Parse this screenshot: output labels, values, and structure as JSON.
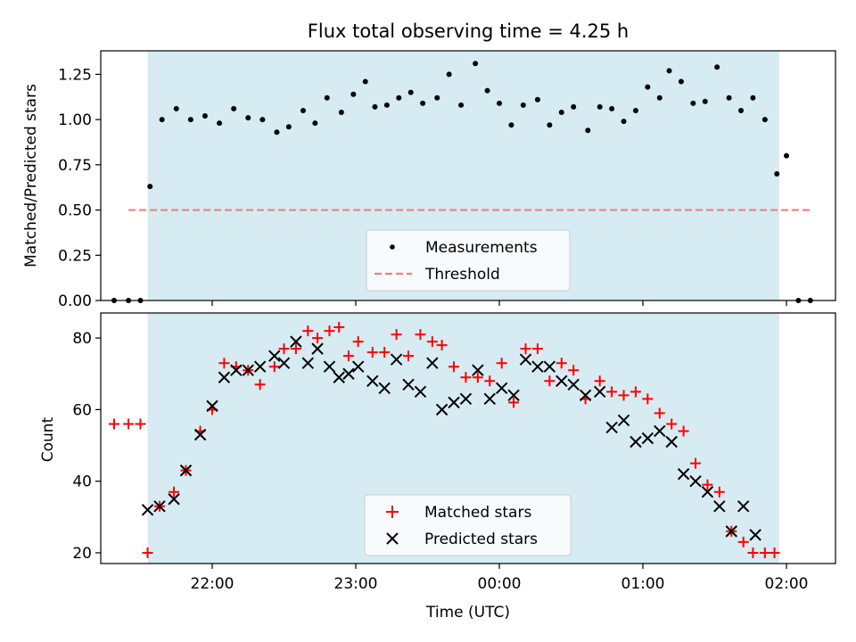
{
  "chart_data": [
    {
      "type": "scatter",
      "title": "Flux total observing time = 4.25 h",
      "xlabel": "",
      "ylabel": "Matched/Predicted stars",
      "ylim": [
        0,
        1.38
      ],
      "yticks": [
        "0.00",
        "0.25",
        "0.50",
        "0.75",
        "1.00",
        "1.25"
      ],
      "grid": false,
      "legend_position": "lower center",
      "shaded_interval": [
        "21:33",
        "01:57"
      ],
      "series": [
        {
          "name": "Measurements",
          "marker": "dot",
          "color": "#000000",
          "points": [
            [
              "21:19",
              0.0
            ],
            [
              "21:25",
              0.0
            ],
            [
              "21:30",
              0.0
            ],
            [
              "21:34",
              0.63
            ],
            [
              "21:39",
              1.0
            ],
            [
              "21:45",
              1.06
            ],
            [
              "21:51",
              1.0
            ],
            [
              "21:57",
              1.02
            ],
            [
              "22:03",
              0.98
            ],
            [
              "22:09",
              1.06
            ],
            [
              "22:15",
              1.01
            ],
            [
              "22:21",
              1.0
            ],
            [
              "22:27",
              0.93
            ],
            [
              "22:32",
              0.96
            ],
            [
              "22:38",
              1.05
            ],
            [
              "22:43",
              0.98
            ],
            [
              "22:48",
              1.12
            ],
            [
              "22:54",
              1.04
            ],
            [
              "22:59",
              1.14
            ],
            [
              "23:04",
              1.21
            ],
            [
              "23:08",
              1.07
            ],
            [
              "23:13",
              1.08
            ],
            [
              "23:18",
              1.12
            ],
            [
              "23:23",
              1.15
            ],
            [
              "23:28",
              1.09
            ],
            [
              "23:34",
              1.12
            ],
            [
              "23:39",
              1.25
            ],
            [
              "23:44",
              1.08
            ],
            [
              "23:50",
              1.31
            ],
            [
              "23:55",
              1.16
            ],
            [
              "00:00",
              1.09
            ],
            [
              "00:05",
              0.97
            ],
            [
              "00:10",
              1.08
            ],
            [
              "00:16",
              1.11
            ],
            [
              "00:21",
              0.97
            ],
            [
              "00:26",
              1.04
            ],
            [
              "00:31",
              1.07
            ],
            [
              "00:37",
              0.94
            ],
            [
              "00:42",
              1.07
            ],
            [
              "00:47",
              1.06
            ],
            [
              "00:52",
              0.99
            ],
            [
              "00:57",
              1.05
            ],
            [
              "01:02",
              1.18
            ],
            [
              "01:07",
              1.12
            ],
            [
              "01:11",
              1.27
            ],
            [
              "01:16",
              1.21
            ],
            [
              "01:21",
              1.09
            ],
            [
              "01:26",
              1.1
            ],
            [
              "01:31",
              1.29
            ],
            [
              "01:36",
              1.12
            ],
            [
              "01:41",
              1.05
            ],
            [
              "01:46",
              1.12
            ],
            [
              "01:51",
              1.0
            ],
            [
              "01:56",
              0.7
            ],
            [
              "02:00",
              0.8
            ],
            [
              "02:05",
              0.0
            ],
            [
              "02:10",
              0.0
            ]
          ]
        },
        {
          "name": "Threshold",
          "style": "dashed",
          "color": "#f08080",
          "points": [
            [
              "21:25",
              0.5
            ],
            [
              "02:10",
              0.5
            ]
          ]
        }
      ]
    },
    {
      "type": "scatter",
      "title": "",
      "xlabel": "Time (UTC)",
      "ylabel": "Count",
      "ylim": [
        17,
        87
      ],
      "yticks": [
        "20",
        "40",
        "60",
        "80"
      ],
      "xticks": [
        "22:00",
        "23:00",
        "00:00",
        "01:00",
        "02:00"
      ],
      "grid": false,
      "legend_position": "lower center",
      "shaded_interval": [
        "21:33",
        "01:57"
      ],
      "series": [
        {
          "name": "Matched stars",
          "marker": "plus",
          "color": "#ff0000",
          "points": [
            [
              "21:19",
              56
            ],
            [
              "21:25",
              56
            ],
            [
              "21:30",
              56
            ],
            [
              "21:33",
              20
            ],
            [
              "21:38",
              33
            ],
            [
              "21:44",
              37
            ],
            [
              "21:49",
              43
            ],
            [
              "21:55",
              54
            ],
            [
              "22:00",
              60
            ],
            [
              "22:05",
              73
            ],
            [
              "22:10",
              72
            ],
            [
              "22:15",
              71
            ],
            [
              "22:20",
              67
            ],
            [
              "22:26",
              72
            ],
            [
              "22:30",
              77
            ],
            [
              "22:35",
              77
            ],
            [
              "22:40",
              82
            ],
            [
              "22:44",
              80
            ],
            [
              "22:49",
              82
            ],
            [
              "22:53",
              83
            ],
            [
              "22:57",
              75
            ],
            [
              "23:01",
              79
            ],
            [
              "23:07",
              76
            ],
            [
              "23:12",
              76
            ],
            [
              "23:17",
              81
            ],
            [
              "23:22",
              75
            ],
            [
              "23:27",
              81
            ],
            [
              "23:32",
              79
            ],
            [
              "23:36",
              78
            ],
            [
              "23:41",
              72
            ],
            [
              "23:46",
              69
            ],
            [
              "23:51",
              69
            ],
            [
              "23:56",
              68
            ],
            [
              "00:01",
              73
            ],
            [
              "00:06",
              62
            ],
            [
              "00:11",
              77
            ],
            [
              "00:16",
              77
            ],
            [
              "00:21",
              68
            ],
            [
              "00:26",
              73
            ],
            [
              "00:31",
              71
            ],
            [
              "00:36",
              63
            ],
            [
              "00:42",
              68
            ],
            [
              "00:47",
              65
            ],
            [
              "00:52",
              64
            ],
            [
              "00:57",
              65
            ],
            [
              "01:02",
              63
            ],
            [
              "01:07",
              59
            ],
            [
              "01:12",
              56
            ],
            [
              "01:17",
              54
            ],
            [
              "01:22",
              45
            ],
            [
              "01:27",
              39
            ],
            [
              "01:32",
              37
            ],
            [
              "01:37",
              26
            ],
            [
              "01:42",
              23
            ],
            [
              "01:46",
              20
            ],
            [
              "01:51",
              20
            ],
            [
              "01:55",
              20
            ]
          ]
        },
        {
          "name": "Predicted stars",
          "marker": "x",
          "color": "#000000",
          "points": [
            [
              "21:33",
              32
            ],
            [
              "21:38",
              33
            ],
            [
              "21:44",
              35
            ],
            [
              "21:49",
              43
            ],
            [
              "21:55",
              53
            ],
            [
              "22:00",
              61
            ],
            [
              "22:05",
              69
            ],
            [
              "22:10",
              71
            ],
            [
              "22:15",
              71
            ],
            [
              "22:20",
              72
            ],
            [
              "22:26",
              75
            ],
            [
              "22:30",
              73
            ],
            [
              "22:35",
              79
            ],
            [
              "22:40",
              73
            ],
            [
              "22:44",
              77
            ],
            [
              "22:49",
              72
            ],
            [
              "22:53",
              69
            ],
            [
              "22:57",
              70
            ],
            [
              "23:01",
              72
            ],
            [
              "23:07",
              68
            ],
            [
              "23:12",
              66
            ],
            [
              "23:17",
              74
            ],
            [
              "23:22",
              67
            ],
            [
              "23:27",
              65
            ],
            [
              "23:32",
              73
            ],
            [
              "23:36",
              60
            ],
            [
              "23:41",
              62
            ],
            [
              "23:46",
              63
            ],
            [
              "23:51",
              71
            ],
            [
              "23:56",
              63
            ],
            [
              "00:01",
              66
            ],
            [
              "00:06",
              64
            ],
            [
              "00:11",
              74
            ],
            [
              "00:16",
              72
            ],
            [
              "00:21",
              72
            ],
            [
              "00:26",
              68
            ],
            [
              "00:31",
              67
            ],
            [
              "00:36",
              64
            ],
            [
              "00:42",
              65
            ],
            [
              "00:47",
              55
            ],
            [
              "00:52",
              57
            ],
            [
              "00:57",
              51
            ],
            [
              "01:02",
              52
            ],
            [
              "01:07",
              54
            ],
            [
              "01:12",
              51
            ],
            [
              "01:17",
              42
            ],
            [
              "01:22",
              40
            ],
            [
              "01:27",
              37
            ],
            [
              "01:32",
              33
            ],
            [
              "01:37",
              26
            ],
            [
              "01:42",
              33
            ],
            [
              "01:47",
              25
            ]
          ]
        }
      ]
    }
  ]
}
